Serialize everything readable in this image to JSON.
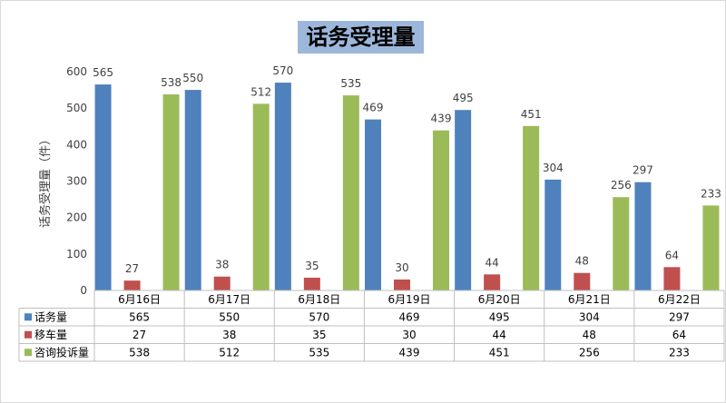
{
  "chart_data": {
    "type": "bar",
    "title": "话务受理量",
    "ylabel": "话务受理量（件）",
    "xlabel": "",
    "ylim": [
      0,
      600
    ],
    "yticks": [
      0,
      100,
      200,
      300,
      400,
      500,
      600
    ],
    "grid": false,
    "legend": "data-table",
    "categories": [
      "6月16日",
      "6月17日",
      "6月18日",
      "6月19日",
      "6月20日",
      "6月21日",
      "6月22日"
    ],
    "series": [
      {
        "name": "话务量",
        "color": "#4f81bd",
        "values": [
          565,
          550,
          570,
          469,
          495,
          304,
          297
        ]
      },
      {
        "name": "移车量",
        "color": "#c0504d",
        "values": [
          27,
          38,
          35,
          30,
          44,
          48,
          64
        ]
      },
      {
        "name": "咨询投诉量",
        "color": "#9bbb59",
        "values": [
          538,
          512,
          535,
          439,
          451,
          256,
          233
        ]
      }
    ]
  }
}
